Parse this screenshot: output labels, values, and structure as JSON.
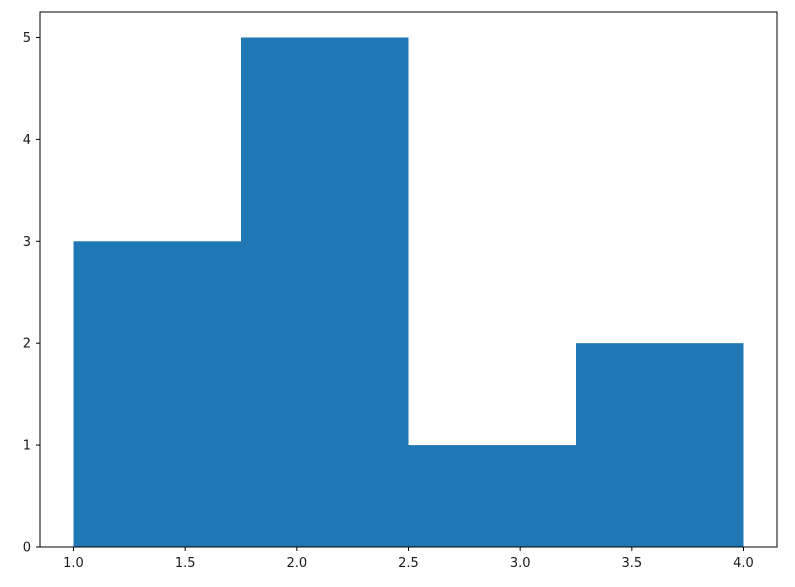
{
  "chart_data": {
    "type": "bar",
    "subtype": "histogram",
    "bin_edges": [
      1.0,
      1.75,
      2.5,
      3.25,
      4.0
    ],
    "counts": [
      3,
      5,
      1,
      2
    ],
    "x_ticks": [
      1.0,
      1.5,
      2.0,
      2.5,
      3.0,
      3.5,
      4.0
    ],
    "x_tick_labels": [
      "1.0",
      "1.5",
      "2.0",
      "2.5",
      "3.0",
      "3.5",
      "4.0"
    ],
    "y_ticks": [
      0,
      1,
      2,
      3,
      4,
      5
    ],
    "y_tick_labels": [
      "0",
      "1",
      "2",
      "3",
      "4",
      "5"
    ],
    "xlim": [
      0.85,
      4.15
    ],
    "ylim": [
      0,
      5.25
    ],
    "grid": false,
    "legend": false,
    "colors": {
      "bar": "#1f77b4",
      "spine": "#000000",
      "tick": "#000000",
      "tick_label": "#1a1a1a",
      "background": "#ffffff"
    }
  }
}
